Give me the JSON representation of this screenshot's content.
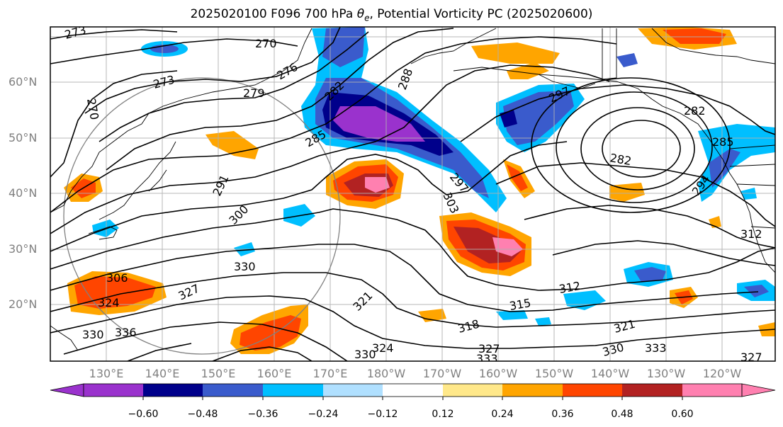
{
  "title": {
    "prefix": "2025020100 F096 700 hPa ",
    "theta_symbol": "θ",
    "theta_sub": "e",
    "suffix": ", Potential Vorticity PC (2025020600)"
  },
  "lat_labels": [
    "60°N",
    "50°N",
    "40°N",
    "30°N",
    "20°N"
  ],
  "lon_labels": [
    "130°E",
    "140°E",
    "150°E",
    "160°E",
    "170°E",
    "180°W",
    "170°W",
    "160°W",
    "150°W",
    "140°W",
    "130°W",
    "120°W"
  ],
  "colorbar": {
    "ticks": [
      "−0.60",
      "−0.48",
      "−0.36",
      "−0.24",
      "−0.12",
      "0.12",
      "0.24",
      "0.36",
      "0.48",
      "0.60"
    ],
    "colors": [
      "#9a32cd",
      "#00008b",
      "#3a5bcc",
      "#00bfff",
      "#b0e0ff",
      "#ffffff",
      "#ffe88a",
      "#ffa500",
      "#ff4500",
      "#b22222",
      "#ff80b0"
    ]
  },
  "contour_labels": [
    "273",
    "270",
    "276",
    "273",
    "279",
    "270",
    "282",
    "288",
    "285",
    "291",
    "297",
    "297",
    "282",
    "282",
    "285",
    "300",
    "303",
    "294",
    "306",
    "330",
    "327",
    "324",
    "321",
    "312",
    "315",
    "312",
    "318",
    "321",
    "324",
    "330",
    "330",
    "336",
    "333",
    "327",
    "333",
    "330",
    "327"
  ],
  "colors": {
    "contour": "#000000",
    "grid": "#b0b0b0",
    "coast": "#000000",
    "axis_label": "#808080"
  }
}
